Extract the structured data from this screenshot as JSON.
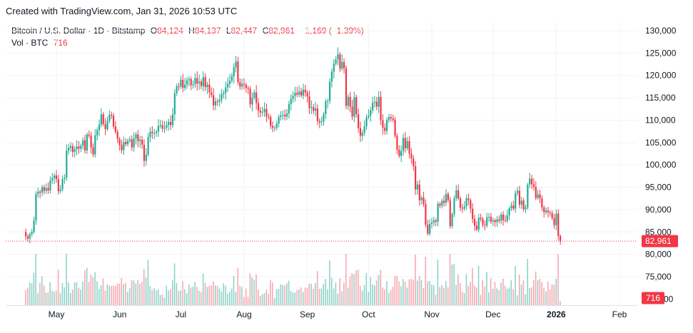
{
  "watermark": "Created with TradingView.com, Jan 31, 2026 10:53 UTC",
  "legend": {
    "symbol": "Bitcoin / U.S. Dollar · 1D · Bitstamp",
    "o_label": "O",
    "o_value": "84,124",
    "h_label": "H",
    "h_value": "84,137",
    "l_label": "L",
    "l_value": "82,447",
    "c_label": "C",
    "c_value": "82,961",
    "change": "−1,169 (−1.39%)",
    "vol_label": "Vol · BTC",
    "vol_value": "716"
  },
  "colors": {
    "up": "#22ab94",
    "down": "#f23645",
    "up_vol": "#8fd3c8",
    "down_vol": "#f7a9b0",
    "grid": "#f0f3fa",
    "axis_text": "#131722"
  },
  "chart_data": {
    "type": "candlestick",
    "symbol": "Bitcoin / U.S. Dollar",
    "interval": "1D",
    "exchange": "Bitstamp",
    "y_axis_ticks": [
      "130,000",
      "125,000",
      "120,000",
      "115,000",
      "110,000",
      "105,000",
      "100,000",
      "95,000",
      "90,000",
      "85,000",
      "80,000",
      "75,000"
    ],
    "x_axis_ticks": [
      "May",
      "Jun",
      "Jul",
      "Aug",
      "Sep",
      "Oct",
      "Nov",
      "Dec",
      "2026",
      "Feb"
    ],
    "last_price_label": "82,961",
    "last_price": 82961,
    "last_volume_label": "716",
    "partial_tick_label": "00",
    "ylim": [
      72000,
      132000
    ],
    "first_date": "2025-04-16",
    "closes": [
      84000,
      83500,
      84500,
      85000,
      87500,
      93500,
      94000,
      93800,
      95000,
      94200,
      94800,
      94300,
      96500,
      97000,
      97600,
      96800,
      94100,
      94500,
      96800,
      97100,
      103200,
      103800,
      104200,
      102900,
      103500,
      104100,
      103600,
      104300,
      105500,
      103200,
      106800,
      106500,
      103900,
      102300,
      106600,
      107800,
      109000,
      111300,
      109100,
      108000,
      109800,
      111200,
      111000,
      108600,
      107400,
      105800,
      104400,
      103300,
      105100,
      104600,
      105400,
      105700,
      103900,
      105900,
      106800,
      105300,
      105600,
      104500,
      100900,
      102300,
      106200,
      107400,
      107100,
      107100,
      107400,
      108700,
      108900,
      108100,
      108300,
      108900,
      109600,
      108900,
      111300,
      116000,
      117600,
      117500,
      119000,
      117200,
      117900,
      118900,
      119200,
      117800,
      118000,
      119400,
      118200,
      118600,
      117600,
      119600,
      117400,
      117900,
      116200,
      115600,
      113300,
      114200,
      114100,
      114600,
      115800,
      116100,
      117300,
      118100,
      118800,
      119800,
      121800,
      123100,
      118500,
      117500,
      118100,
      117900,
      117200,
      117000,
      113500,
      115000,
      116200,
      113800,
      112100,
      111700,
      111800,
      112500,
      110800,
      110700,
      108700,
      108300,
      108300,
      109200,
      110700,
      111100,
      111200,
      110800,
      111500,
      113600,
      114800,
      115400,
      116100,
      115700,
      116400,
      115500,
      116800,
      116200,
      115300,
      112700,
      112900,
      112100,
      112600,
      109800,
      109500,
      109700,
      111300,
      114200,
      114300,
      118600,
      120800,
      122600,
      123600,
      124700,
      121500,
      123000,
      121600,
      113200,
      115200,
      113000,
      110800,
      115100,
      111300,
      108200,
      106500,
      107200,
      108600,
      110600,
      111000,
      112200,
      113900,
      114100,
      113000,
      115200,
      110000,
      108300,
      107600,
      110000,
      110700,
      110400,
      110100,
      106500,
      103400,
      102000,
      103100,
      106000,
      103700,
      105300,
      102500,
      101400,
      99700,
      94500,
      95600,
      92100,
      92700,
      91200,
      86600,
      84600,
      86800,
      87100,
      87600,
      87300,
      91300,
      90900,
      92000,
      91500,
      93500,
      92100,
      86300,
      89000,
      92500,
      94300,
      92500,
      90400,
      90200,
      90700,
      92500,
      92100,
      90200,
      87900,
      86400,
      85500,
      88200,
      87900,
      86600,
      86400,
      88300,
      88400,
      87300,
      87600,
      87200,
      87800,
      87500,
      88900,
      87600,
      87500,
      88700,
      90300,
      90900,
      90200,
      93700,
      94200,
      91100,
      92000,
      90100,
      90500,
      95600,
      96900,
      95700,
      95100,
      92600,
      93400,
      92500,
      90500,
      89400,
      89800,
      89400,
      89200,
      88100,
      86500,
      89100,
      84100,
      82961
    ]
  }
}
